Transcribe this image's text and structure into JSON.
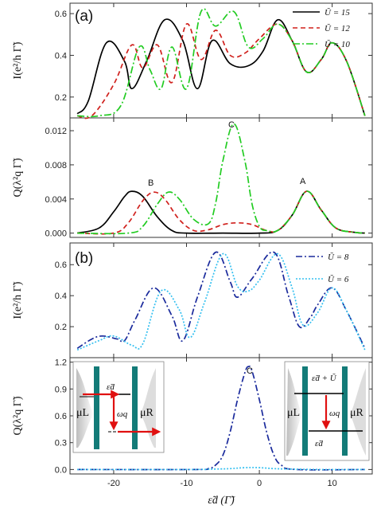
{
  "chart_data": [
    {
      "panel": "(a)",
      "type": "line",
      "ylabel": "I(e²/h Γ̃)",
      "ylim": [
        0.1,
        0.65
      ],
      "yticks": [
        "0.2",
        "0.4",
        "0.6"
      ],
      "ytick_values": [
        0.2,
        0.4,
        0.6
      ],
      "xlim": [
        -26,
        15.5
      ],
      "legend": "top-right",
      "series": [
        {
          "name": "Ũ = 15",
          "color": "#000000",
          "dash": "solid",
          "x": [
            -25,
            -23.5,
            -21,
            -18.5,
            -17.5,
            -15.5,
            -13,
            -10.5,
            -8.5,
            -6.5,
            -4,
            -1.5,
            0.5,
            2.5,
            4.5,
            6.5,
            8.5,
            10,
            12,
            14.5
          ],
          "y": [
            0.12,
            0.18,
            0.46,
            0.37,
            0.24,
            0.37,
            0.57,
            0.47,
            0.24,
            0.47,
            0.36,
            0.35,
            0.42,
            0.57,
            0.47,
            0.32,
            0.38,
            0.46,
            0.37,
            0.11
          ]
        },
        {
          "name": "Ũ = 12",
          "color": "#d0201c",
          "dash": "6,4",
          "x": [
            -25,
            -23,
            -20,
            -17.5,
            -16,
            -14,
            -12,
            -10,
            -8,
            -6,
            -4,
            -2,
            0,
            2.5,
            4.5,
            6.5,
            8.5,
            10,
            12,
            14.5
          ],
          "y": [
            0.11,
            0.11,
            0.26,
            0.45,
            0.34,
            0.45,
            0.27,
            0.55,
            0.38,
            0.52,
            0.4,
            0.41,
            0.48,
            0.55,
            0.47,
            0.32,
            0.38,
            0.46,
            0.37,
            0.11
          ]
        },
        {
          "name": "Ũ = 10",
          "color": "#22cc22",
          "dash": "9,3,2,3",
          "x": [
            -25,
            -22,
            -19,
            -16.5,
            -15,
            -13.5,
            -12,
            -10,
            -8,
            -6,
            -3.5,
            -1.5,
            0.5,
            2.5,
            4.5,
            6.5,
            8.5,
            10,
            12,
            14.5
          ],
          "y": [
            0.11,
            0.11,
            0.16,
            0.44,
            0.33,
            0.24,
            0.44,
            0.24,
            0.61,
            0.54,
            0.61,
            0.44,
            0.48,
            0.55,
            0.47,
            0.32,
            0.38,
            0.46,
            0.37,
            0.11
          ]
        }
      ]
    },
    {
      "panel": "(a) lower",
      "type": "line",
      "ylabel": "Q(λ²q Γ̃)",
      "ylim": [
        -0.0005,
        0.0135
      ],
      "yticks": [
        "0.000",
        "0.004",
        "0.008",
        "0.012"
      ],
      "ytick_values": [
        0,
        0.004,
        0.008,
        0.012
      ],
      "annotations": [
        {
          "text": "A",
          "x": 6.5,
          "y": 0.0049
        },
        {
          "text": "B",
          "x": -14.5,
          "y": 0.0048
        },
        {
          "text": "C",
          "x": -3.5,
          "y": 0.0128
        }
      ],
      "series": [
        {
          "name": "Ũ = 15",
          "color": "#000000",
          "dash": "solid",
          "x": [
            -25,
            -22,
            -20,
            -18.5,
            -17.5,
            -16,
            -14,
            -12,
            -10,
            -5,
            0,
            2.5,
            4.5,
            6.5,
            8.5,
            10.5,
            13,
            14.5
          ],
          "y": [
            0,
            0.0006,
            0.0025,
            0.0043,
            0.0049,
            0.0043,
            0.0019,
            0.0003,
            0,
            0,
            0,
            0.0003,
            0.0021,
            0.0049,
            0.0027,
            0.0006,
            0.0001,
            0
          ]
        },
        {
          "name": "Ũ = 12",
          "color": "#d0201c",
          "dash": "6,4",
          "x": [
            -25,
            -20,
            -18,
            -16,
            -14.5,
            -13,
            -11,
            -9,
            -7,
            -5,
            -3,
            -1,
            1,
            2.5,
            4.5,
            6.5,
            8.5,
            10.5,
            13,
            14.5
          ],
          "y": [
            0,
            0,
            0.0012,
            0.0038,
            0.0048,
            0.004,
            0.0016,
            0.0003,
            0.0004,
            0.001,
            0.0012,
            0.001,
            0.0003,
            0.0003,
            0.0021,
            0.0049,
            0.0027,
            0.0006,
            0.0001,
            0
          ]
        },
        {
          "name": "Ũ = 10",
          "color": "#22cc22",
          "dash": "9,3,2,3",
          "x": [
            -25,
            -18,
            -16,
            -14,
            -12.5,
            -11,
            -9,
            -7,
            -6,
            -5,
            -3.5,
            -2,
            -1,
            0,
            1,
            2.5,
            4.5,
            6.5,
            8.5,
            10.5,
            13,
            14.5
          ],
          "y": [
            0,
            0,
            0.0008,
            0.0034,
            0.0048,
            0.004,
            0.0016,
            0.0011,
            0.0035,
            0.0085,
            0.0128,
            0.0085,
            0.0034,
            0.0008,
            0.0003,
            0.0003,
            0.0021,
            0.0049,
            0.0027,
            0.0006,
            0.0001,
            0
          ]
        }
      ]
    },
    {
      "panel": "(b)",
      "type": "line",
      "ylabel": "I(e²/h Γ̃)",
      "ylim": [
        0.0,
        0.74
      ],
      "yticks": [
        "0.2",
        "0.4",
        "0.6"
      ],
      "ytick_values": [
        0.2,
        0.4,
        0.6
      ],
      "legend": "top-right",
      "series": [
        {
          "name": "Ũ = 8",
          "color": "#1a2a9c",
          "dash": "8,3,2,3",
          "x": [
            -25,
            -23,
            -21.5,
            -19.5,
            -18.5,
            -17,
            -14.5,
            -12,
            -10.5,
            -8.5,
            -6,
            -4,
            -3,
            -1,
            2,
            4,
            5.5,
            7,
            8,
            10,
            12,
            14.5
          ],
          "y": [
            0.06,
            0.12,
            0.14,
            0.12,
            0.11,
            0.25,
            0.45,
            0.27,
            0.11,
            0.39,
            0.68,
            0.49,
            0.39,
            0.51,
            0.68,
            0.4,
            0.2,
            0.26,
            0.34,
            0.45,
            0.3,
            0.06
          ]
        },
        {
          "name": "Ũ = 6",
          "color": "#35c0f0",
          "dash": "2,2",
          "x": [
            -25,
            -22,
            -20,
            -17.5,
            -16,
            -13.5,
            -11,
            -9.5,
            -7.5,
            -5,
            -3,
            -1.5,
            0,
            2.5,
            4.5,
            6,
            8,
            10,
            12,
            14.5
          ],
          "y": [
            0.05,
            0.11,
            0.14,
            0.08,
            0.09,
            0.43,
            0.31,
            0.13,
            0.36,
            0.67,
            0.46,
            0.43,
            0.5,
            0.67,
            0.45,
            0.21,
            0.29,
            0.45,
            0.3,
            0.05
          ]
        }
      ]
    },
    {
      "panel": "(b) lower",
      "type": "line",
      "ylabel": "Q(λ²q Γ̃)",
      "ylim": [
        -0.05,
        1.25
      ],
      "yticks": [
        "0.0",
        "0.3",
        "0.6",
        "0.9",
        "1.2"
      ],
      "ytick_values": [
        0.0,
        0.3,
        0.6,
        0.9,
        1.2
      ],
      "xlabel": "ε̃d (Γ̃)",
      "xticks": [
        "-20",
        "-10",
        "0",
        "10"
      ],
      "xtick_values": [
        -20,
        -10,
        0,
        10
      ],
      "annotations": [
        {
          "text": "C",
          "x": -1.5,
          "y": 1.15
        }
      ],
      "insets": {
        "left": {
          "mu_left": "μL",
          "mu_right": "μR",
          "level": "ε̃d",
          "omega": "ωq"
        },
        "right": {
          "mu_left": "μL",
          "mu_right": "μR",
          "level_top": "ε̃d + Ũ",
          "level_bottom": "ε̃d",
          "omega": "ωq"
        }
      },
      "series": [
        {
          "name": "Ũ = 8",
          "color": "#1a2a9c",
          "dash": "8,3,2,3",
          "x": [
            -25,
            -9,
            -7,
            -6,
            -5,
            -4,
            -3,
            -2,
            -1.5,
            -1,
            0,
            1,
            2,
            3,
            5,
            14.5
          ],
          "y": [
            0,
            0,
            0.01,
            0.05,
            0.16,
            0.42,
            0.78,
            1.08,
            1.15,
            1.1,
            0.78,
            0.42,
            0.16,
            0.05,
            0,
            0
          ]
        },
        {
          "name": "Ũ = 6",
          "color": "#35c0f0",
          "dash": "2,2",
          "x": [
            -25,
            -10,
            -6,
            -4,
            -2,
            0,
            2,
            4,
            8,
            14.5
          ],
          "y": [
            0,
            0,
            0.005,
            0.01,
            0.02,
            0.02,
            0.01,
            0.005,
            0,
            0
          ]
        }
      ]
    }
  ]
}
